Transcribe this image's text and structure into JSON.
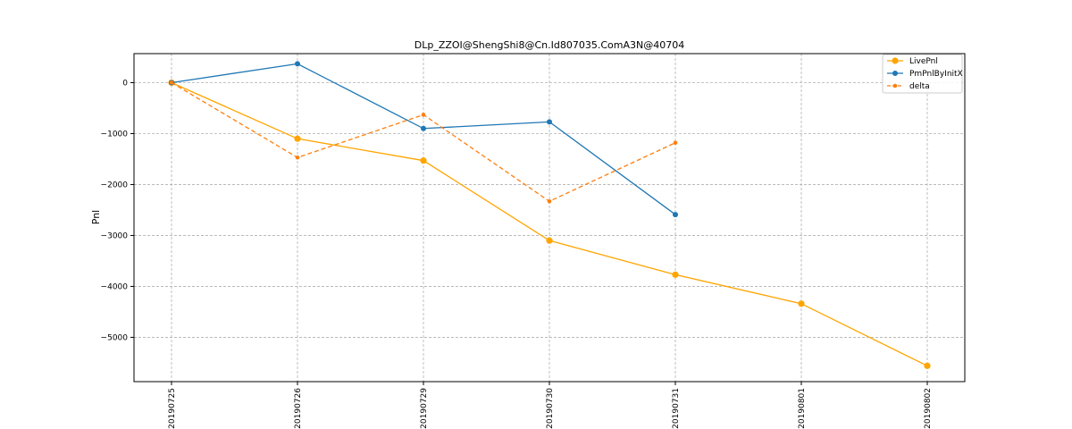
{
  "chart_data": {
    "type": "line",
    "title": "DLp_ZZOI@ShengShi8@Cn.Id807035.ComA3N@40704",
    "xlabel": "",
    "ylabel": "Pnl",
    "categories": [
      "20190725",
      "20190726",
      "20190729",
      "20190730",
      "20190731",
      "20190801",
      "20190802"
    ],
    "ylim": [
      -5870,
      570
    ],
    "yticks": [
      0,
      -1000,
      -2000,
      -3000,
      -4000,
      -5000
    ],
    "ytick_labels": [
      "0",
      "−1000",
      "−2000",
      "−3000",
      "−4000",
      "−5000"
    ],
    "grid": true,
    "legend_position": "top-right",
    "series": [
      {
        "name": "LivePnl",
        "color": "#ffa500",
        "style": "solid",
        "marker": "large-circle",
        "values": [
          0,
          -1100,
          -1530,
          -3100,
          -3770,
          -4340,
          -5560
        ]
      },
      {
        "name": "PmPnlByInitX",
        "color": "#1f77b4",
        "style": "solid",
        "marker": "circle",
        "values": [
          0,
          370,
          -900,
          -770,
          -2590,
          null,
          null
        ]
      },
      {
        "name": "delta",
        "color": "#ff7f0e",
        "style": "dashed",
        "marker": "small-circle",
        "values": [
          0,
          -1470,
          -630,
          -2330,
          -1180,
          null,
          null
        ]
      }
    ]
  }
}
